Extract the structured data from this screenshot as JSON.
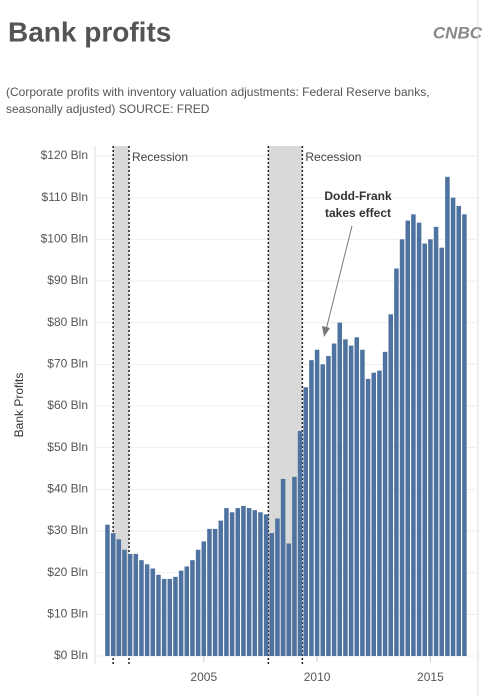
{
  "chart_data": {
    "type": "bar",
    "title": "Bank profits",
    "logo": "CNBC",
    "subtitle": [
      "(Corporate profits with inventory valuation adjustments: Federal Reserve banks,",
      "seasonally adjusted) SOURCE: FRED"
    ],
    "ylabel": "Bank Profits",
    "color": "#4f73a1",
    "grid": true,
    "xlim": [
      2000.2,
      2017.1
    ],
    "xticks": [
      2005,
      2010,
      2015
    ],
    "ylim": [
      0,
      120
    ],
    "yticks": [
      {
        "value": 0,
        "label": "$0 Bln"
      },
      {
        "value": 10,
        "label": "$10 Bln"
      },
      {
        "value": 20,
        "label": "$20 Bln"
      },
      {
        "value": 30,
        "label": "$30 Bln"
      },
      {
        "value": 40,
        "label": "$40 Bln"
      },
      {
        "value": 50,
        "label": "$50 Bln"
      },
      {
        "value": 60,
        "label": "$60 Bln"
      },
      {
        "value": 70,
        "label": "$70 Bln"
      },
      {
        "value": 80,
        "label": "$80 Bln"
      },
      {
        "value": 90,
        "label": "$90 Bln"
      },
      {
        "value": 100,
        "label": "$100 Bln"
      },
      {
        "value": 110,
        "label": "$110 Bln"
      },
      {
        "value": 120,
        "label": "$120 Bln"
      }
    ],
    "recessions": [
      {
        "start": 2001.0,
        "end": 2001.7,
        "label": "Recession"
      },
      {
        "start": 2007.85,
        "end": 2009.35,
        "label": "Recession"
      }
    ],
    "annotation": [
      "Dodd-Frank",
      "takes effect"
    ],
    "x": [
      2000.75,
      2001,
      2001.25,
      2001.5,
      2001.75,
      2002,
      2002.25,
      2002.5,
      2002.75,
      2003,
      2003.25,
      2003.5,
      2003.75,
      2004,
      2004.25,
      2004.5,
      2004.75,
      2005,
      2005.25,
      2005.5,
      2005.75,
      2006,
      2006.25,
      2006.5,
      2006.75,
      2007,
      2007.25,
      2007.5,
      2007.75,
      2008,
      2008.25,
      2008.5,
      2008.75,
      2009,
      2009.25,
      2009.5,
      2009.75,
      2010,
      2010.25,
      2010.5,
      2010.75,
      2011,
      2011.25,
      2011.5,
      2011.75,
      2012,
      2012.25,
      2012.5,
      2012.75,
      2013,
      2013.25,
      2013.5,
      2013.75,
      2014,
      2014.25,
      2014.5,
      2014.75,
      2015,
      2015.25,
      2015.5,
      2015.75,
      2016,
      2016.25,
      2016.5
    ],
    "values": [
      31.5,
      29.5,
      28,
      25.5,
      24.5,
      24.5,
      23,
      22,
      21,
      19.5,
      18.5,
      18.5,
      19,
      20.5,
      21.5,
      23,
      25.5,
      27.5,
      30.5,
      30.5,
      32.5,
      35.5,
      34.5,
      35.5,
      36,
      35.5,
      35,
      34.5,
      34,
      29.5,
      33,
      42.5,
      27,
      43,
      54,
      64.5,
      71,
      73.5,
      70,
      72,
      75,
      80,
      76,
      74.5,
      76.5,
      73.5,
      66.5,
      68,
      68.5,
      73,
      82,
      93,
      100,
      104.5,
      106,
      104,
      99,
      100,
      103,
      98,
      115,
      110,
      108,
      106
    ]
  }
}
